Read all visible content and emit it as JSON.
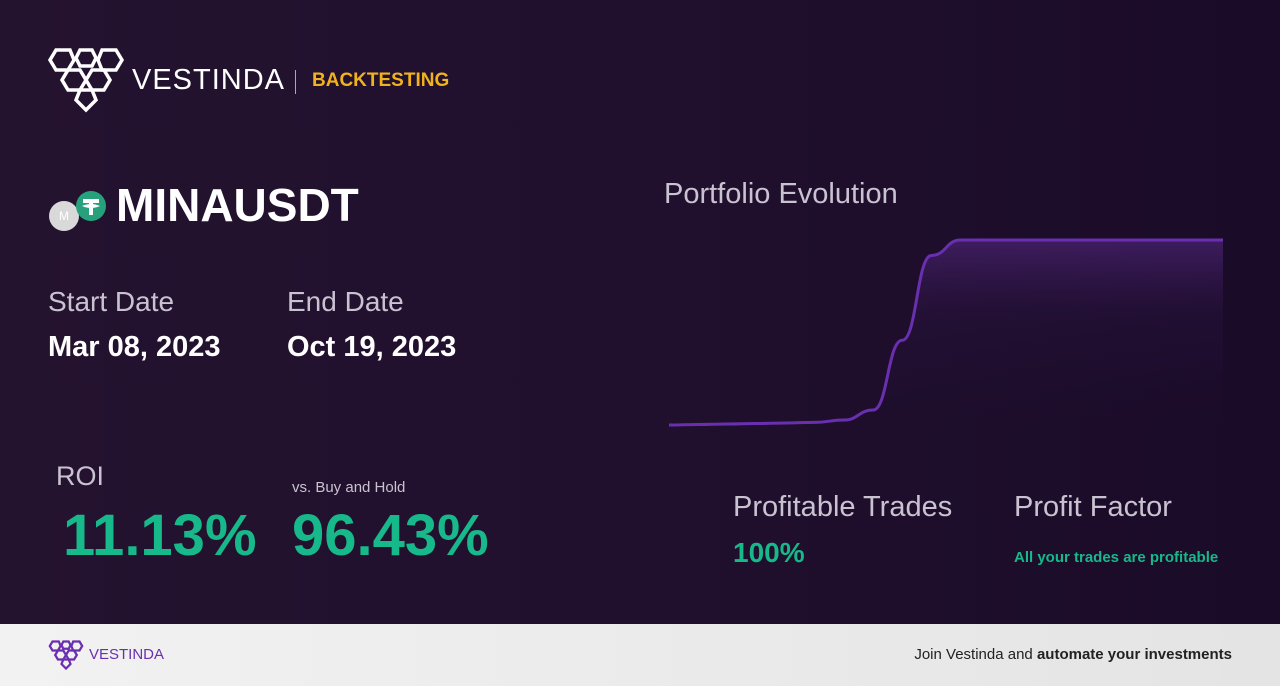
{
  "header": {
    "brand": "VESTINDA",
    "section": "BACKTESTING"
  },
  "pair": {
    "name": "MINAUSDT",
    "coin_letter": "M"
  },
  "dates": {
    "start_label": "Start Date",
    "start_value": "Mar 08, 2023",
    "end_label": "End Date",
    "end_value": "Oct 19, 2023"
  },
  "returns": {
    "roi_label": "ROI",
    "roi_value": "11.13%",
    "vs_label": "vs. Buy and Hold",
    "vs_value": "96.43%"
  },
  "chart_data": {
    "type": "line",
    "title": "Portfolio Evolution",
    "color": "#6a2fb0",
    "values": [
      100,
      100.03,
      100.06,
      100.09,
      100.12,
      100.16,
      100.3,
      100.9,
      105.1,
      110.2,
      111.13,
      111.13,
      111.13,
      111.13,
      111.13,
      111.13,
      111.13,
      111.13,
      111.13,
      111.13
    ]
  },
  "stats": {
    "trades_label": "Profitable Trades",
    "trades_value": "100%",
    "factor_label": "Profit Factor",
    "factor_value": "All your trades are profitable"
  },
  "footer": {
    "brand": "VESTINDA",
    "cta_plain": "Join Vestinda and ",
    "cta_bold": "automate your investments"
  }
}
